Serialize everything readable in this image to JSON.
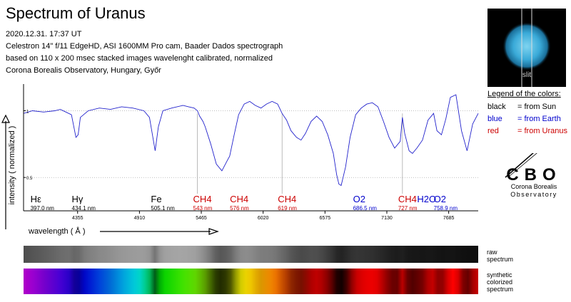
{
  "title": "Spectrum of Uranus",
  "info_lines": [
    "2020.12.31.  17:37 UT",
    "Celestron 14\" f/11 EdgeHD, ASI 1600MM Pro cam, Baader Dados spectrograph",
    "based on 110 x 200   msec stacked images  wavelenght calibrated,  normalized",
    "Corona Borealis Observatory, Hungary, Győr"
  ],
  "legend": {
    "title": "Legend of the colors:",
    "entries": [
      {
        "key": "black",
        "desc": "= from Sun",
        "color": "#000000"
      },
      {
        "key": "blue",
        "desc": "= from Earth",
        "color": "#0000cc"
      },
      {
        "key": "red",
        "desc": "= from Uranus",
        "color": "#cc0000"
      }
    ]
  },
  "thumbnail_label": "slit",
  "observatory": {
    "abbr": "CBO",
    "name_line1": "Corona Borealis",
    "name_line2": "Observatory"
  },
  "strip_labels": {
    "raw": [
      "raw",
      "spectrum"
    ],
    "synthetic": [
      "synthetic",
      "colorized",
      "spectrum"
    ]
  },
  "chart_data": {
    "type": "line",
    "xlabel": "wavelength  ( Å )",
    "ylabel": "intensity ( normalized )",
    "xlim": [
      3870,
      7950
    ],
    "ylim": [
      0.25,
      1.2
    ],
    "xticks": [
      4355,
      4910,
      5465,
      6020,
      6575,
      7130,
      7685
    ],
    "yticks": [
      0.5,
      1
    ],
    "ytick_labels": [
      "0.5",
      "1"
    ],
    "series": [
      {
        "color": "#2222cc",
        "x": [
          3870,
          3950,
          4050,
          4150,
          4200,
          4250,
          4300,
          4340,
          4360,
          4380,
          4450,
          4550,
          4650,
          4750,
          4850,
          4950,
          5000,
          5051,
          5080,
          5120,
          5200,
          5300,
          5350,
          5400,
          5430,
          5450,
          5480,
          5500,
          5550,
          5600,
          5650,
          5700,
          5720,
          5760,
          5800,
          5850,
          5900,
          5950,
          6000,
          6050,
          6100,
          6150,
          6190,
          6230,
          6270,
          6320,
          6360,
          6400,
          6450,
          6500,
          6550,
          6600,
          6650,
          6680,
          6700,
          6720,
          6760,
          6800,
          6850,
          6900,
          6950,
          7000,
          7050,
          7100,
          7150,
          7200,
          7250,
          7270,
          7290,
          7330,
          7360,
          7400,
          7450,
          7500,
          7550,
          7580,
          7620,
          7660,
          7700,
          7750,
          7800,
          7850,
          7900,
          7950
        ],
        "y": [
          0.98,
          1.0,
          0.99,
          1.0,
          1.01,
          0.99,
          0.97,
          0.8,
          0.82,
          0.95,
          1.0,
          1.02,
          1.01,
          1.03,
          1.02,
          1.0,
          0.95,
          0.7,
          0.88,
          1.0,
          1.02,
          1.04,
          1.03,
          1.02,
          1.0,
          0.96,
          0.92,
          0.88,
          0.75,
          0.6,
          0.55,
          0.63,
          0.66,
          0.82,
          0.97,
          1.05,
          1.07,
          1.04,
          1.02,
          1.05,
          1.07,
          1.05,
          0.98,
          0.93,
          0.85,
          0.8,
          0.78,
          0.83,
          0.92,
          0.96,
          0.92,
          0.82,
          0.68,
          0.52,
          0.45,
          0.44,
          0.58,
          0.8,
          0.97,
          1.02,
          1.05,
          1.06,
          1.03,
          0.92,
          0.8,
          0.72,
          0.77,
          0.95,
          0.83,
          0.7,
          0.68,
          0.72,
          0.78,
          0.93,
          0.98,
          0.85,
          0.82,
          0.94,
          1.1,
          1.12,
          0.85,
          0.7,
          0.9,
          0.98
        ]
      }
    ],
    "line_labels": [
      {
        "name": "Hε",
        "value": "397.0 nm",
        "x": 3970,
        "color": "#000000",
        "marker": false
      },
      {
        "name": "Hγ",
        "value": "434.1 nm",
        "x": 4341,
        "color": "#000000",
        "marker": false
      },
      {
        "name": "Fe",
        "value": "505.1 nm",
        "x": 5051,
        "color": "#000000",
        "marker": false
      },
      {
        "name": "CH4",
        "value": "543 nm",
        "x": 5430,
        "color": "#cc0000",
        "marker": true
      },
      {
        "name": "CH4",
        "value": "576 nm",
        "x": 5760,
        "color": "#cc0000",
        "marker": false
      },
      {
        "name": "CH4",
        "value": "619 nm",
        "x": 6190,
        "color": "#cc0000",
        "marker": true
      },
      {
        "name": "O2",
        "value": "686.5 nm",
        "x": 6865,
        "color": "#0000cc",
        "marker": false
      },
      {
        "name": "CH4",
        "value": "727 nm",
        "x": 7270,
        "color": "#cc0000",
        "marker": true
      },
      {
        "name": "H2O",
        "value": "",
        "x": 7440,
        "color": "#0000cc",
        "marker": false
      },
      {
        "name": "O2",
        "value": "758.9 nm",
        "x": 7589,
        "color": "#0000cc",
        "marker": false
      }
    ]
  }
}
